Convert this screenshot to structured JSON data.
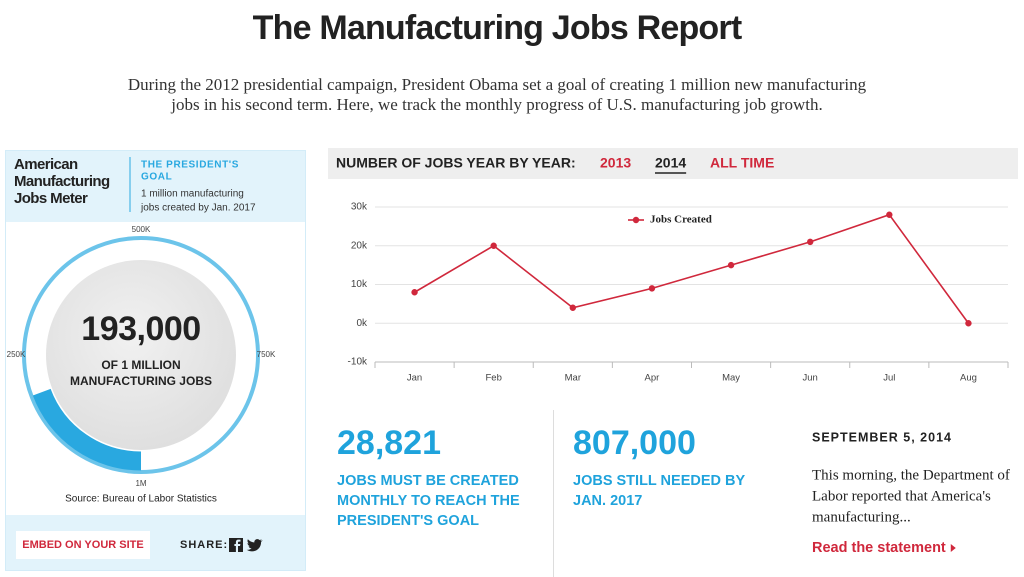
{
  "header": {
    "title": "The Manufacturing Jobs Report",
    "intro": [
      "During the 2012 presidential campaign, President Obama set a goal of creating 1 million new manufacturing",
      "jobs in his second term. Here, we track the monthly progress of U.S. manufacturing job growth."
    ]
  },
  "meter": {
    "title": [
      "American",
      "Manufacturing",
      "Jobs Meter"
    ],
    "goal_label": [
      "THE PRESIDENT'S",
      "GOAL"
    ],
    "goal_text": [
      "1 million manufacturing",
      "jobs created by Jan. 2017"
    ],
    "value": 193000,
    "value_label": "193,000",
    "caption": [
      "OF 1 MILLION",
      "MANUFACTURING JOBS"
    ],
    "ticks": [
      {
        "value": 250000,
        "label": "250K"
      },
      {
        "value": 500000,
        "label": "500K"
      },
      {
        "value": 750000,
        "label": "750K"
      },
      {
        "value": 1000000,
        "label": "1M"
      }
    ],
    "source": "Source: Bureau of Labor Statistics",
    "embed": "EMBED ON YOUR SITE",
    "share": "SHARE:"
  },
  "tabs": {
    "label": "NUMBER OF JOBS YEAR BY YEAR:",
    "options": [
      "2013",
      "2014",
      "ALL TIME"
    ],
    "active": 1
  },
  "chart_data": {
    "type": "line",
    "categories": [
      "Jan",
      "Feb",
      "Mar",
      "Apr",
      "May",
      "Jun",
      "Jul",
      "Aug"
    ],
    "series": [
      {
        "name": "Jobs Created",
        "color": "#d0283c",
        "values": [
          8000,
          20000,
          4000,
          9000,
          15000,
          21000,
          28000,
          0
        ]
      }
    ],
    "ylim": [
      -10000,
      30000
    ],
    "yticks": [
      {
        "value": -10000,
        "label": "-10k"
      },
      {
        "value": 0,
        "label": "0k"
      },
      {
        "value": 10000,
        "label": "10k"
      },
      {
        "value": 20000,
        "label": "20k"
      },
      {
        "value": 30000,
        "label": "30k"
      }
    ],
    "grid": true,
    "legend": "top"
  },
  "stats": [
    {
      "value": "28,821",
      "text": [
        "JOBS MUST BE CREATED",
        "MONTHLY TO REACH THE",
        "PRESIDENT'S GOAL"
      ]
    },
    {
      "value": "807,000",
      "text": [
        "JOBS STILL NEEDED BY",
        "JAN. 2017"
      ]
    }
  ],
  "news": {
    "date": "SEPTEMBER 5, 2014",
    "text": [
      "This morning, the Department of",
      "Labor reported that America's",
      "manufacturing..."
    ],
    "link": "Read the statement"
  }
}
